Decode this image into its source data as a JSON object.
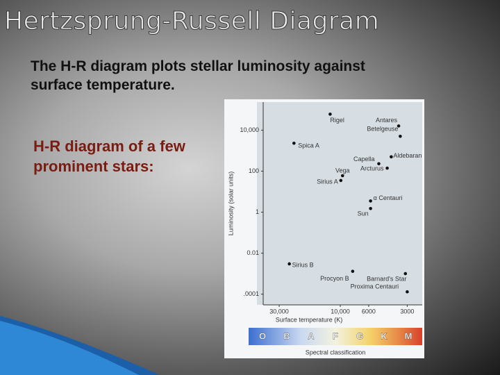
{
  "slide_title": "Hertzsprung-Russell Diagram",
  "intro": "The H-R diagram plots stellar luminosity against surface temperature.",
  "subtitle": "H-R diagram of a few prominent stars:",
  "chart_data": {
    "type": "scatter",
    "x_label": "Surface temperature (K)",
    "y_label": "Luminosity (solar units)",
    "spectral_label": "Spectral classification",
    "spectral_classes": [
      "O",
      "B",
      "A",
      "F",
      "G",
      "K",
      "M"
    ],
    "x_scale": "log",
    "y_scale": "log",
    "color": "#111111",
    "xlim": [
      40000,
      2500
    ],
    "ylim": [
      3e-05,
      200000
    ],
    "xticks": [
      {
        "value": 30000,
        "label": "30,000"
      },
      {
        "value": 10000,
        "label": "10,000"
      },
      6000,
      3000
    ],
    "yticks": [
      {
        "value": 10000,
        "label": "10,000"
      },
      100,
      1,
      0.01,
      {
        "value": 0.0001,
        "label": ".0001"
      }
    ],
    "labels": [
      "Rigel",
      "Antares",
      "Betelgeuse",
      "Spica A",
      "Aldebaran",
      "Capella",
      "Arcturus",
      "Vega",
      "Sirius A",
      "α Centauri",
      "Sun",
      "Sirius B",
      "Procyon B",
      "Barnard's Star",
      "Proxima Centauri"
    ],
    "x": [
      12000,
      3500,
      3400,
      23000,
      4000,
      5000,
      4300,
      9600,
      9900,
      5800,
      5800,
      25000,
      8000,
      3100,
      3000
    ],
    "y": [
      60000,
      16000,
      5000,
      2300,
      500,
      230,
      140,
      60,
      35,
      3.5,
      1.5,
      0.003,
      0.0013,
      0.001,
      0.00013
    ]
  }
}
